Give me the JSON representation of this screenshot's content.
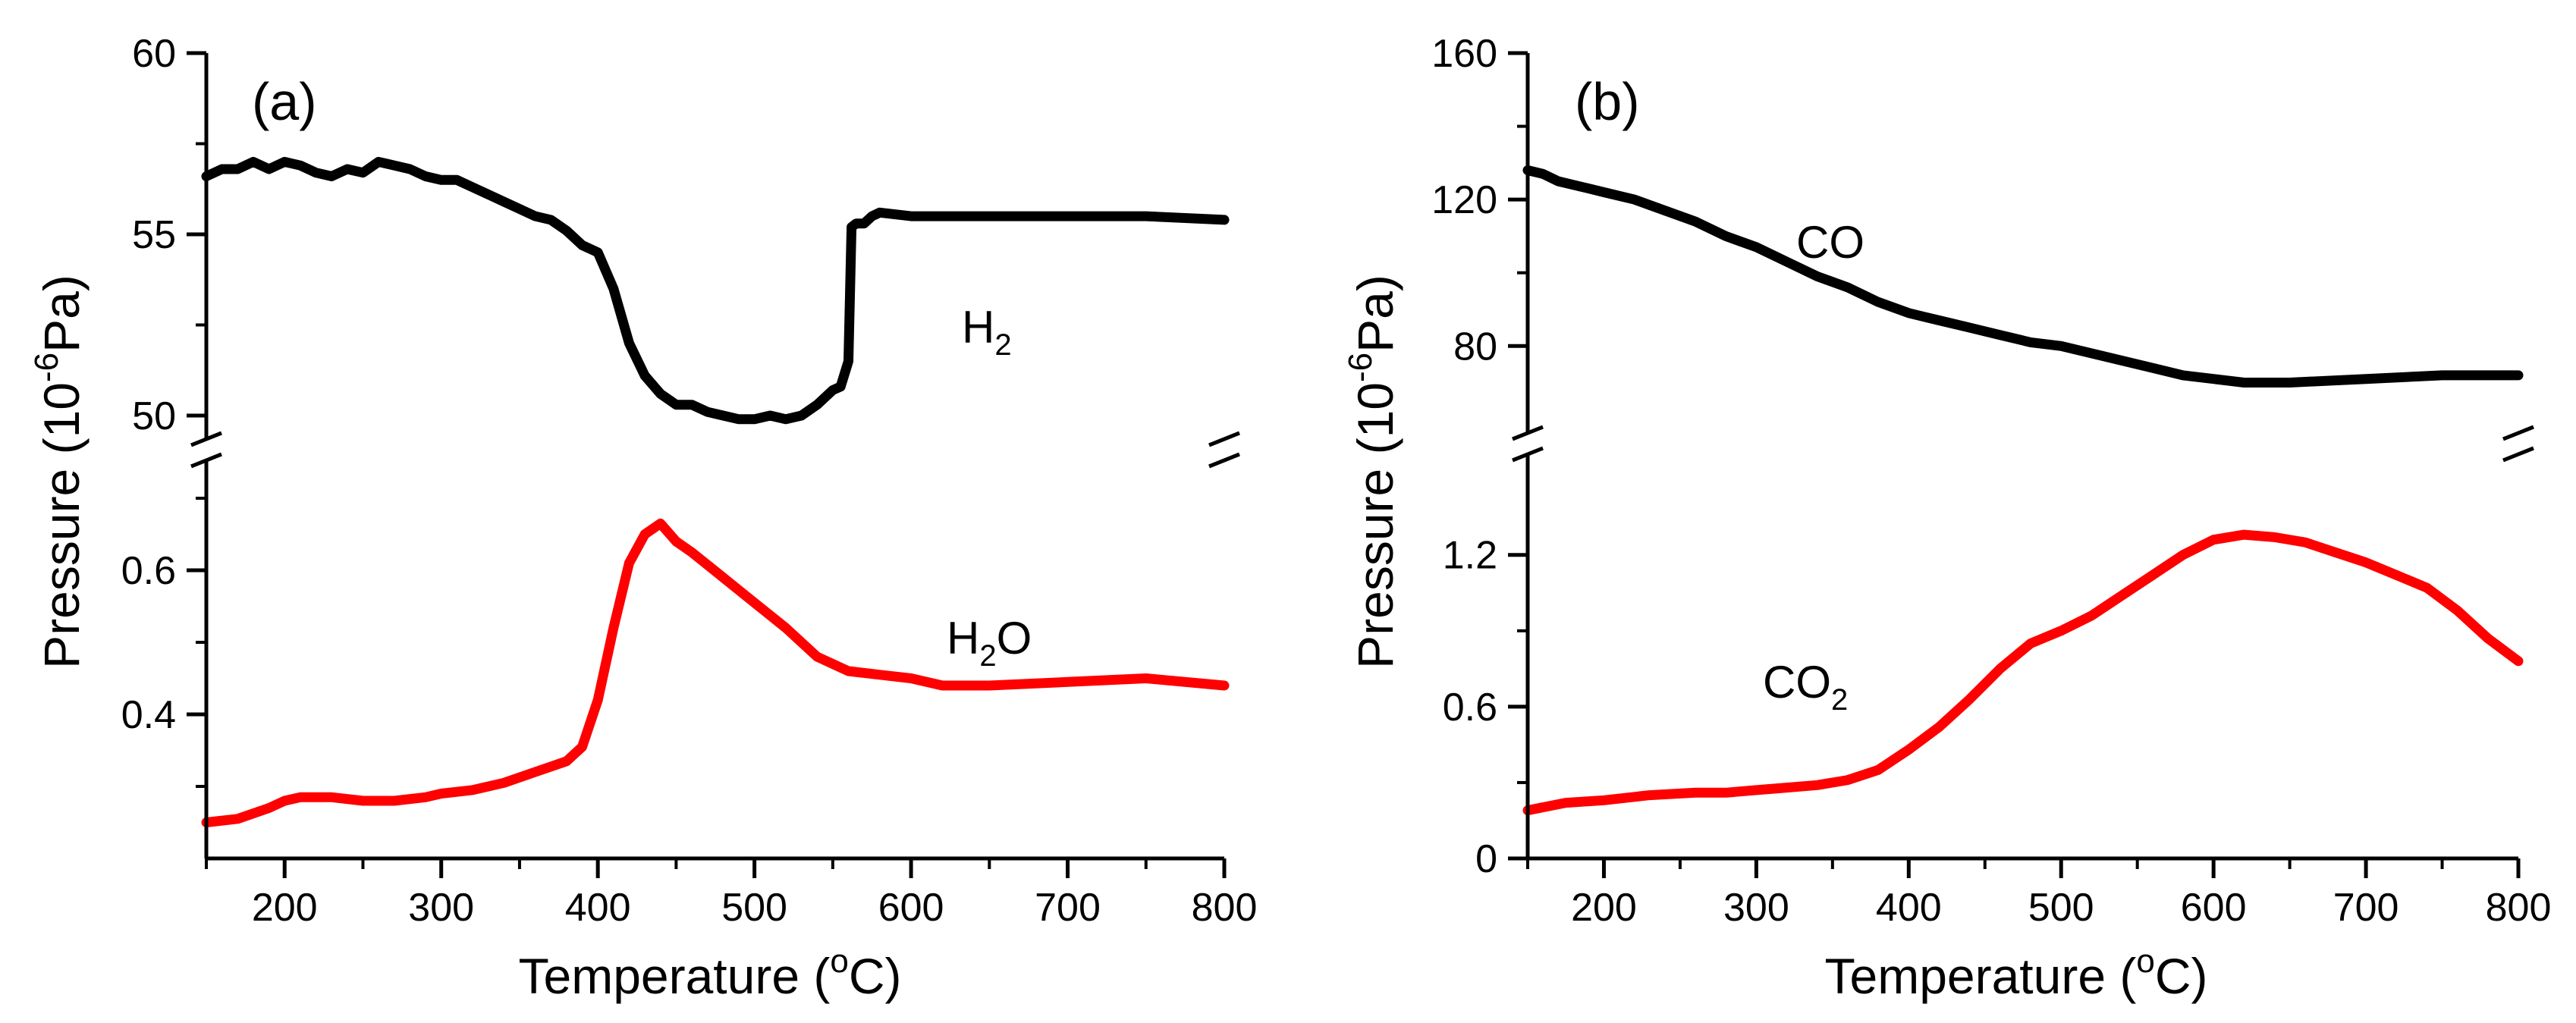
{
  "chart_data": [
    {
      "type": "line",
      "panel_label": "(a)",
      "xlabel": "Temperature (",
      "xlabel_sup": "o",
      "xlabel_end": "C)",
      "ylabel": "Pressure (10",
      "ylabel_sup": "-6",
      "ylabel_end": "Pa)",
      "xlim": [
        150,
        800
      ],
      "xticks": [
        "200",
        "300",
        "400",
        "500",
        "600",
        "700",
        "800"
      ],
      "xtick_values": [
        200,
        300,
        400,
        500,
        600,
        700,
        800
      ],
      "segments": [
        {
          "ylim": [
            50,
            60
          ],
          "range_top": 60,
          "range_bottom": 50,
          "yticks": [
            "50",
            "55",
            "60"
          ],
          "ytick_values": [
            50,
            55,
            60
          ],
          "minor_yticks": [
            52.5,
            57.5
          ],
          "series": [
            {
              "name": "H2",
              "color": "#000000",
              "x": [
                150,
                160,
                170,
                180,
                190,
                200,
                210,
                220,
                230,
                240,
                250,
                260,
                270,
                280,
                290,
                300,
                310,
                320,
                330,
                340,
                350,
                360,
                370,
                380,
                390,
                400,
                410,
                420,
                430,
                440,
                450,
                460,
                470,
                480,
                490,
                500,
                510,
                520,
                530,
                540,
                550,
                555,
                560,
                562,
                565,
                570,
                575,
                580,
                600,
                620,
                650,
                700,
                750,
                800
              ],
              "y": [
                56.6,
                56.8,
                56.8,
                57.0,
                56.8,
                57.0,
                56.9,
                56.7,
                56.6,
                56.8,
                56.7,
                57.0,
                56.9,
                56.8,
                56.6,
                56.5,
                56.5,
                56.3,
                56.1,
                55.9,
                55.7,
                55.5,
                55.4,
                55.1,
                54.7,
                54.5,
                53.5,
                52.0,
                51.1,
                50.6,
                50.3,
                50.3,
                50.1,
                50.0,
                49.9,
                49.9,
                50.0,
                49.9,
                50.0,
                50.3,
                50.7,
                50.8,
                51.5,
                55.2,
                55.3,
                55.3,
                55.5,
                55.6,
                55.5,
                55.5,
                55.5,
                55.5,
                55.5,
                55.4
              ]
            }
          ]
        },
        {
          "ylim": [
            0.2,
            0.72
          ],
          "range_top": 0.72,
          "range_bottom": 0.2,
          "yticks": [
            "0.4",
            "0.6"
          ],
          "ytick_values": [
            0.4,
            0.6
          ],
          "minor_yticks": [
            0.3,
            0.5,
            0.7
          ],
          "series": [
            {
              "name": "H2O",
              "color": "#ff0000",
              "x": [
                150,
                170,
                190,
                200,
                210,
                230,
                250,
                270,
                290,
                300,
                320,
                340,
                360,
                380,
                390,
                400,
                410,
                420,
                430,
                440,
                450,
                460,
                480,
                500,
                520,
                540,
                560,
                580,
                600,
                620,
                650,
                700,
                750,
                800
              ],
              "y": [
                0.25,
                0.255,
                0.27,
                0.28,
                0.285,
                0.285,
                0.28,
                0.28,
                0.285,
                0.29,
                0.295,
                0.305,
                0.32,
                0.335,
                0.355,
                0.42,
                0.52,
                0.61,
                0.65,
                0.665,
                0.64,
                0.625,
                0.59,
                0.555,
                0.52,
                0.48,
                0.46,
                0.455,
                0.45,
                0.44,
                0.44,
                0.445,
                0.45,
                0.44
              ]
            }
          ]
        }
      ],
      "annotations": [
        {
          "text": "H",
          "sub": "2",
          "series": "H2"
        },
        {
          "text": "H",
          "sub": "2",
          "text_end": "O",
          "series": "H2O"
        }
      ]
    },
    {
      "type": "line",
      "panel_label": "(b)",
      "xlabel": "Temperature (",
      "xlabel_sup": "o",
      "xlabel_end": "C)",
      "ylabel": "Pressure (10",
      "ylabel_sup": "-6",
      "ylabel_end": "Pa)",
      "xlim": [
        150,
        800
      ],
      "xticks": [
        "200",
        "300",
        "400",
        "500",
        "600",
        "700",
        "800"
      ],
      "xtick_values": [
        200,
        300,
        400,
        500,
        600,
        700,
        800
      ],
      "segments": [
        {
          "ylim": [
            61,
            160
          ],
          "range_top": 160,
          "range_bottom": 61,
          "yticks": [
            "80",
            "120",
            "160"
          ],
          "ytick_values": [
            80,
            120,
            160
          ],
          "minor_yticks": [
            100,
            140
          ],
          "series": [
            {
              "name": "CO",
              "color": "#000000",
              "x": [
                150,
                160,
                170,
                180,
                190,
                200,
                220,
                240,
                260,
                280,
                300,
                320,
                340,
                360,
                380,
                400,
                420,
                440,
                460,
                480,
                500,
                520,
                540,
                560,
                580,
                600,
                620,
                650,
                700,
                750,
                800
              ],
              "y": [
                128,
                127,
                125,
                124,
                123,
                122,
                120,
                117,
                114,
                110,
                107,
                103,
                99,
                96,
                92,
                89,
                87,
                85,
                83,
                81,
                80,
                78,
                76,
                74,
                72,
                71,
                70,
                70,
                71,
                72,
                72
              ]
            }
          ]
        },
        {
          "ylim": [
            0,
            1.55
          ],
          "range_top": 1.55,
          "range_bottom": 0,
          "yticks": [
            "0",
            "0.6",
            "1.2"
          ],
          "ytick_values": [
            0,
            0.6,
            1.2
          ],
          "minor_yticks": [
            0.3,
            0.9
          ],
          "series": [
            {
              "name": "CO2",
              "color": "#ff0000",
              "x": [
                150,
                175,
                200,
                230,
                260,
                280,
                300,
                320,
                340,
                360,
                380,
                400,
                420,
                440,
                460,
                480,
                500,
                520,
                540,
                560,
                580,
                600,
                620,
                640,
                660,
                680,
                700,
                720,
                740,
                760,
                780,
                800
              ],
              "y": [
                0.19,
                0.22,
                0.23,
                0.25,
                0.26,
                0.26,
                0.27,
                0.28,
                0.29,
                0.31,
                0.35,
                0.43,
                0.52,
                0.63,
                0.75,
                0.85,
                0.9,
                0.96,
                1.04,
                1.12,
                1.2,
                1.26,
                1.28,
                1.27,
                1.25,
                1.21,
                1.17,
                1.12,
                1.07,
                0.98,
                0.87,
                0.78
              ]
            }
          ]
        }
      ],
      "annotations": [
        {
          "text": "CO",
          "series": "CO"
        },
        {
          "text": "CO",
          "sub": "2",
          "series": "CO2"
        }
      ]
    }
  ]
}
